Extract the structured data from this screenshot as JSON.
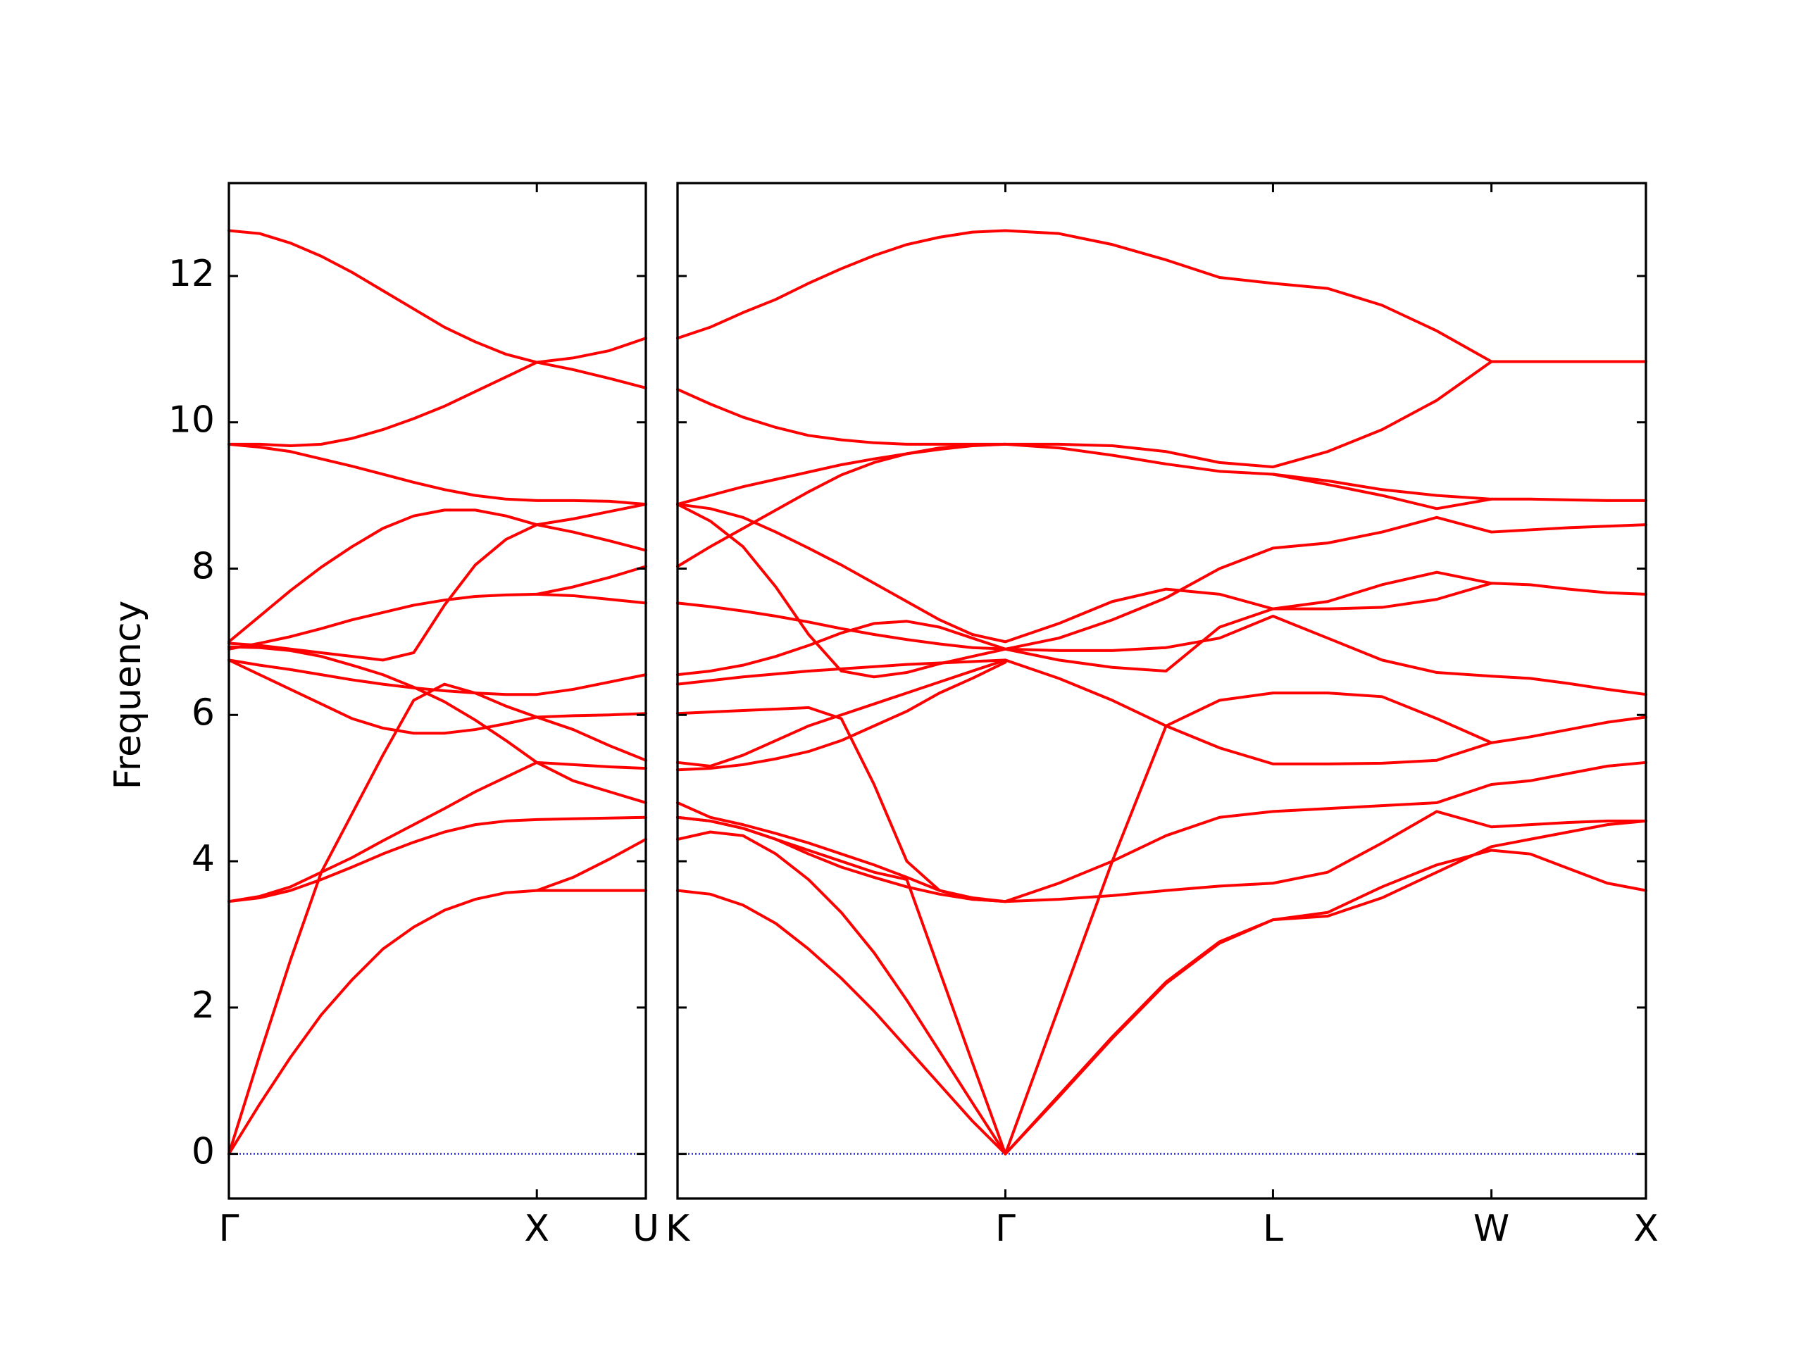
{
  "chart_data": [
    {
      "type": "line",
      "ylabel": "Frequency",
      "x": [
        0,
        0.1,
        0.2,
        0.3,
        0.4,
        0.5,
        0.6,
        0.7,
        0.8,
        0.9,
        1.0,
        1.118,
        1.236,
        1.354
      ],
      "xlim": [
        0,
        1.354
      ],
      "xticks": [
        {
          "value": 0,
          "label": "Γ"
        },
        {
          "value": 1.0,
          "label": "X"
        },
        {
          "value": 1.354,
          "label": "U"
        }
      ],
      "ylim": [
        -0.61,
        13.27
      ],
      "yticks": [
        0,
        2,
        4,
        6,
        8,
        10,
        12
      ],
      "hlines": [
        {
          "value": 0,
          "color": "#0000cc",
          "style": "dotted"
        }
      ],
      "series": [
        {
          "color": "#ff0000",
          "values": [
            12.62,
            12.58,
            12.45,
            12.27,
            12.05,
            11.8,
            11.55,
            11.3,
            11.1,
            10.93,
            10.82,
            10.88,
            10.98,
            11.15
          ]
        },
        {
          "color": "#ff0000",
          "values": [
            9.7,
            9.7,
            9.68,
            9.7,
            9.78,
            9.9,
            10.05,
            10.22,
            10.42,
            10.62,
            10.82,
            10.72,
            10.6,
            10.47
          ]
        },
        {
          "color": "#ff0000",
          "values": [
            9.7,
            9.66,
            9.6,
            9.5,
            9.4,
            9.29,
            9.18,
            9.08,
            9.0,
            8.95,
            8.93,
            8.93,
            8.92,
            8.88
          ]
        },
        {
          "color": "#ff0000",
          "values": [
            7.0,
            7.35,
            7.7,
            8.02,
            8.3,
            8.55,
            8.72,
            8.8,
            8.8,
            8.72,
            8.6,
            8.5,
            8.38,
            8.25
          ]
        },
        {
          "color": "#ff0000",
          "values": [
            6.9,
            6.98,
            7.07,
            7.18,
            7.3,
            7.4,
            7.5,
            7.57,
            7.62,
            7.64,
            7.65,
            7.63,
            7.58,
            7.53
          ]
        },
        {
          "color": "#ff0000",
          "values": [
            null,
            null,
            null,
            null,
            null,
            null,
            null,
            null,
            null,
            null,
            7.65,
            7.75,
            7.88,
            8.03
          ]
        },
        {
          "color": "#ff0000",
          "values": [
            6.98,
            6.95,
            6.9,
            6.85,
            6.8,
            6.75,
            6.85,
            7.5,
            8.05,
            8.4,
            8.6,
            8.68,
            8.78,
            8.88
          ]
        },
        {
          "color": "#ff0000",
          "values": [
            6.75,
            6.55,
            6.35,
            6.15,
            5.95,
            5.82,
            5.75,
            5.75,
            5.8,
            5.88,
            5.97,
            5.99,
            6.0,
            6.02
          ]
        },
        {
          "color": "#ff0000",
          "values": [
            null,
            null,
            null,
            null,
            null,
            null,
            null,
            null,
            null,
            null,
            5.97,
            5.8,
            5.58,
            5.38
          ]
        },
        {
          "color": "#ff0000",
          "values": [
            6.75,
            6.68,
            6.62,
            6.55,
            6.48,
            6.42,
            6.37,
            6.33,
            6.3,
            6.28,
            6.28,
            6.35,
            6.45,
            6.55
          ]
        },
        {
          "color": "#ff0000",
          "values": [
            6.93,
            6.92,
            6.88,
            6.8,
            6.68,
            6.55,
            6.38,
            6.18,
            5.93,
            5.65,
            5.35,
            5.32,
            5.29,
            5.27
          ]
        },
        {
          "color": "#ff0000",
          "values": [
            0,
            1.35,
            2.65,
            3.85,
            4.65,
            5.45,
            6.2,
            6.42,
            6.3,
            6.12,
            5.97,
            null,
            null,
            null
          ]
        },
        {
          "color": "#ff0000",
          "values": [
            0,
            0.68,
            1.32,
            1.9,
            2.38,
            2.8,
            3.1,
            3.33,
            3.48,
            3.57,
            3.6,
            3.6,
            3.6,
            3.6
          ]
        },
        {
          "color": "#ff0000",
          "values": [
            null,
            null,
            null,
            null,
            null,
            null,
            null,
            null,
            null,
            null,
            3.6,
            3.78,
            4.03,
            4.3
          ]
        },
        {
          "color": "#ff0000",
          "values": [
            3.45,
            3.5,
            3.6,
            3.75,
            3.92,
            4.1,
            4.26,
            4.4,
            4.5,
            4.55,
            4.57,
            4.58,
            4.59,
            4.6
          ]
        },
        {
          "color": "#ff0000",
          "values": [
            3.45,
            3.52,
            3.65,
            3.85,
            4.05,
            4.28,
            4.5,
            4.72,
            4.95,
            5.15,
            5.35,
            5.1,
            4.95,
            4.8
          ]
        }
      ]
    },
    {
      "type": "line",
      "sharey": true,
      "x": [
        1.354,
        1.46,
        1.566,
        1.672,
        1.778,
        1.884,
        1.99,
        2.096,
        2.202,
        2.308,
        2.415,
        2.588,
        2.761,
        2.935,
        3.108,
        3.281,
        3.458,
        3.634,
        3.811,
        3.988,
        4.113,
        4.238,
        4.363,
        4.488
      ],
      "xlim": [
        1.354,
        4.488
      ],
      "xticks": [
        {
          "value": 1.354,
          "label": "K"
        },
        {
          "value": 2.415,
          "label": "Γ"
        },
        {
          "value": 3.281,
          "label": "L"
        },
        {
          "value": 3.988,
          "label": "W"
        },
        {
          "value": 4.488,
          "label": "X"
        }
      ],
      "hlines": [
        {
          "value": 0,
          "color": "#0000cc",
          "style": "dotted"
        }
      ],
      "series": [
        {
          "color": "#ff0000",
          "values": [
            11.15,
            11.3,
            11.5,
            11.68,
            11.9,
            12.1,
            12.28,
            12.43,
            12.53,
            12.6,
            12.62,
            12.58,
            12.43,
            12.22,
            11.98,
            11.9,
            11.83,
            11.6,
            11.25,
            10.83,
            10.83,
            10.83,
            10.83,
            10.83
          ]
        },
        {
          "color": "#ff0000",
          "values": [
            10.45,
            10.25,
            10.07,
            9.93,
            9.82,
            9.76,
            9.72,
            9.7,
            9.7,
            9.7,
            9.7,
            9.7,
            9.68,
            9.6,
            9.45,
            9.39,
            9.6,
            9.9,
            10.3,
            10.83,
            null,
            null,
            null,
            null
          ]
        },
        {
          "color": "#ff0000",
          "values": [
            8.88,
            9.0,
            9.12,
            9.22,
            9.32,
            9.42,
            9.5,
            9.57,
            9.63,
            9.68,
            9.7,
            9.65,
            9.55,
            9.43,
            9.33,
            9.29,
            9.2,
            9.08,
            9.0,
            8.95,
            8.95,
            8.94,
            8.93,
            8.93
          ]
        },
        {
          "color": "#ff0000",
          "values": [
            8.03,
            8.3,
            8.55,
            8.8,
            9.05,
            9.28,
            9.45,
            9.57,
            9.65,
            9.69,
            9.7,
            null,
            null,
            null,
            null,
            9.29,
            9.15,
            9.0,
            8.82,
            8.95,
            null,
            null,
            null,
            null
          ]
        },
        {
          "color": "#ff0000",
          "values": [
            8.88,
            8.82,
            8.7,
            8.5,
            8.28,
            8.05,
            7.8,
            7.55,
            7.3,
            7.1,
            7.0,
            7.25,
            7.55,
            7.72,
            7.65,
            7.45,
            7.45,
            7.47,
            7.58,
            7.8,
            7.78,
            7.72,
            7.67,
            7.65
          ]
        },
        {
          "color": "#ff0000",
          "values": [
            8.88,
            8.65,
            8.3,
            7.75,
            7.1,
            6.6,
            6.52,
            6.58,
            6.7,
            6.8,
            6.9,
            6.88,
            6.88,
            6.92,
            7.05,
            7.35,
            7.05,
            6.75,
            6.58,
            6.53,
            6.5,
            6.43,
            6.35,
            6.28
          ]
        },
        {
          "color": "#ff0000",
          "values": [
            7.53,
            7.48,
            7.42,
            7.35,
            7.27,
            7.18,
            7.1,
            7.03,
            6.97,
            6.92,
            6.9,
            7.05,
            7.3,
            7.6,
            8.0,
            8.28,
            8.35,
            8.5,
            8.7,
            8.5,
            8.53,
            8.56,
            8.58,
            8.6
          ]
        },
        {
          "color": "#ff0000",
          "values": [
            6.55,
            6.6,
            6.68,
            6.8,
            6.95,
            7.12,
            7.25,
            7.28,
            7.2,
            7.05,
            6.9,
            6.75,
            6.65,
            6.6,
            7.2,
            7.45,
            7.55,
            7.78,
            7.95,
            7.8,
            null,
            null,
            null,
            null
          ]
        },
        {
          "color": "#ff0000",
          "values": [
            6.42,
            6.47,
            6.52,
            6.56,
            6.6,
            6.63,
            6.66,
            6.69,
            6.71,
            6.73,
            6.75,
            6.5,
            6.2,
            5.85,
            5.55,
            5.33,
            5.33,
            5.34,
            5.38,
            5.62,
            5.7,
            5.8,
            5.9,
            5.97
          ]
        },
        {
          "color": "#ff0000",
          "values": [
            4.6,
            4.55,
            4.45,
            4.3,
            4.15,
            4.0,
            3.85,
            3.75,
            2.5,
            1.25,
            0,
            2.0,
            4.0,
            5.85,
            6.2,
            6.3,
            6.3,
            6.25,
            5.95,
            5.62,
            null,
            null,
            null,
            null
          ]
        },
        {
          "color": "#ff0000",
          "values": [
            6.02,
            6.04,
            6.06,
            6.08,
            6.1,
            5.95,
            5.05,
            4.0,
            3.6,
            3.5,
            3.45,
            3.7,
            4.0,
            4.35,
            4.6,
            4.68,
            4.72,
            4.76,
            4.8,
            5.05,
            5.1,
            5.2,
            5.3,
            5.35
          ]
        },
        {
          "color": "#ff0000",
          "values": [
            4.6,
            4.55,
            4.45,
            4.3,
            4.1,
            3.92,
            3.78,
            3.65,
            3.55,
            3.48,
            3.45,
            3.48,
            3.53,
            3.6,
            3.66,
            3.7,
            3.85,
            4.25,
            4.68,
            4.47,
            4.5,
            4.53,
            4.55,
            4.55
          ]
        },
        {
          "color": "#ff0000",
          "values": [
            4.3,
            4.4,
            4.35,
            4.1,
            3.75,
            3.3,
            2.75,
            2.1,
            1.4,
            0.7,
            0,
            0.8,
            1.6,
            2.35,
            2.9,
            3.2,
            3.3,
            3.65,
            3.95,
            4.15,
            4.1,
            3.9,
            3.7,
            3.6
          ]
        },
        {
          "color": "#ff0000",
          "values": [
            3.6,
            3.55,
            3.4,
            3.15,
            2.8,
            2.4,
            1.95,
            1.45,
            0.95,
            0.45,
            0,
            0.78,
            1.58,
            2.33,
            2.88,
            3.2,
            3.25,
            3.5,
            3.85,
            4.2,
            4.3,
            4.4,
            4.5,
            4.55
          ]
        },
        {
          "color": "#ff0000",
          "values": [
            5.35,
            5.3,
            5.45,
            5.65,
            5.85,
            6.0,
            6.15,
            6.3,
            6.45,
            6.6,
            6.75,
            null,
            null,
            null,
            null,
            null,
            null,
            null,
            null,
            null,
            null,
            null,
            null,
            null
          ]
        },
        {
          "color": "#ff0000",
          "values": [
            5.25,
            5.27,
            5.32,
            5.4,
            5.5,
            5.65,
            5.85,
            6.05,
            6.3,
            6.5,
            6.72,
            null,
            null,
            null,
            null,
            null,
            null,
            null,
            null,
            null,
            null,
            null,
            null,
            null
          ]
        },
        {
          "color": "#ff0000",
          "values": [
            4.8,
            4.6,
            4.5,
            4.38,
            4.25,
            4.1,
            3.95,
            3.78,
            3.6,
            3.48,
            3.45,
            null,
            null,
            null,
            null,
            null,
            null,
            null,
            null,
            null,
            null,
            null,
            null,
            null
          ]
        }
      ]
    }
  ]
}
